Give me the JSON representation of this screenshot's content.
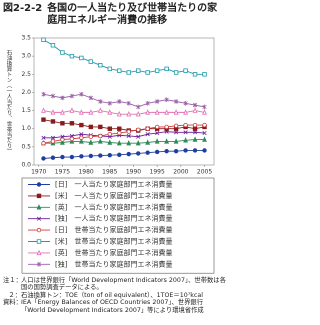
{
  "chart_data": {
    "type": "line",
    "title_number": "図2-2-2",
    "title": "各国の一人当たり及び世帯当たりの家庭用エネルギー消費の推移",
    "ylabel": "石油換算トン（一人当たり、世帯当たり）",
    "x": [
      1971,
      1973,
      1975,
      1977,
      1979,
      1981,
      1983,
      1985,
      1987,
      1989,
      1991,
      1993,
      1995,
      1997,
      1999,
      2001,
      2003,
      2005
    ],
    "xlim": [
      1969,
      2007
    ],
    "xticks": [
      1970,
      1975,
      1980,
      1985,
      1990,
      1995,
      2000,
      2005
    ],
    "ylim": [
      0,
      3.5
    ],
    "yticks": [
      {
        "value": 0,
        "label": "0.0"
      },
      0.5,
      {
        "value": 1,
        "label": "1.0"
      },
      1.5,
      {
        "value": 2,
        "label": "2.0"
      },
      2.5,
      {
        "value": 3,
        "label": "3.0"
      },
      3.5
    ],
    "series": [
      {
        "name": "[日]　一人当たり家庭部門エネ消費量",
        "color": "#1f3fa0",
        "marker": "circle",
        "open": false,
        "values": [
          0.18,
          0.2,
          0.22,
          0.22,
          0.24,
          0.25,
          0.26,
          0.27,
          0.28,
          0.3,
          0.32,
          0.34,
          0.36,
          0.38,
          0.38,
          0.4,
          0.4,
          0.4
        ]
      },
      {
        "name": "[米]　一人当たり家庭部門エネ消費量",
        "color": "#8b1a1a",
        "marker": "square",
        "open": false,
        "values": [
          1.25,
          1.2,
          1.15,
          1.15,
          1.1,
          1.05,
          1.05,
          1.0,
          1.0,
          0.95,
          0.95,
          1.0,
          1.0,
          1.0,
          1.0,
          1.05,
          1.0,
          1.05
        ]
      },
      {
        "name": "[英]　一人当たり家庭部門エネ消費量",
        "color": "#2e8b57",
        "marker": "triangle",
        "open": false,
        "values": [
          0.6,
          0.6,
          0.62,
          0.65,
          0.65,
          0.62,
          0.65,
          0.62,
          0.6,
          0.6,
          0.6,
          0.62,
          0.65,
          0.65,
          0.65,
          0.68,
          0.7,
          0.7
        ]
      },
      {
        "name": "[独]　一人当たり家庭部門エネ消費量",
        "color": "#6a1b9a",
        "marker": "cross",
        "open": false,
        "values": [
          0.75,
          0.75,
          0.78,
          0.8,
          0.85,
          0.82,
          0.8,
          0.78,
          0.82,
          0.8,
          0.78,
          0.85,
          0.88,
          0.92,
          0.9,
          0.9,
          0.9,
          0.88
        ]
      },
      {
        "name": "[日]　世帯当たり家庭部門エネ消費量",
        "color": "#d03a3a",
        "marker": "circle",
        "open": true,
        "values": [
          0.6,
          0.65,
          0.7,
          0.72,
          0.75,
          0.78,
          0.8,
          0.85,
          0.88,
          0.92,
          0.97,
          1.0,
          1.05,
          1.05,
          1.08,
          1.1,
          1.1,
          1.1
        ]
      },
      {
        "name": "[米]　世帯当たり家庭部門エネ消費量",
        "color": "#1f9aaa",
        "marker": "square",
        "open": true,
        "values": [
          3.45,
          3.3,
          3.1,
          3.0,
          2.95,
          2.85,
          2.75,
          2.65,
          2.6,
          2.55,
          2.6,
          2.55,
          2.6,
          2.65,
          2.55,
          2.6,
          2.5,
          2.5
        ]
      },
      {
        "name": "[英]　世帯当たり家庭部門エネ消費量",
        "color": "#e070b0",
        "marker": "triangle",
        "open": true,
        "values": [
          1.5,
          1.45,
          1.45,
          1.5,
          1.45,
          1.45,
          1.5,
          1.45,
          1.4,
          1.4,
          1.4,
          1.45,
          1.45,
          1.45,
          1.45,
          1.45,
          1.5,
          1.45
        ]
      },
      {
        "name": "[独]　世帯当たり家庭部門エネ消費量",
        "color": "#9a60a8",
        "marker": "cross",
        "open": true,
        "values": [
          1.95,
          1.9,
          1.85,
          1.9,
          1.95,
          1.85,
          1.75,
          1.7,
          1.75,
          1.7,
          1.6,
          1.7,
          1.75,
          1.8,
          1.75,
          1.7,
          1.65,
          1.6
        ]
      }
    ],
    "notes": [
      {
        "label": "注１：",
        "text": "人口は世界銀行「World Development Indicators 2007」、世帯数は各国の国勢調査データによる。"
      },
      {
        "label": "２：",
        "text": "石油換算トン：TOE（ton of oil equivalent）、1TOE＝10⁷kcal"
      },
      {
        "label": "資料：",
        "text": "IEA「Energy Balances of OECD Countries 2007」、世界銀行「World Development Indicators 2007」等により環境省作成"
      }
    ]
  }
}
